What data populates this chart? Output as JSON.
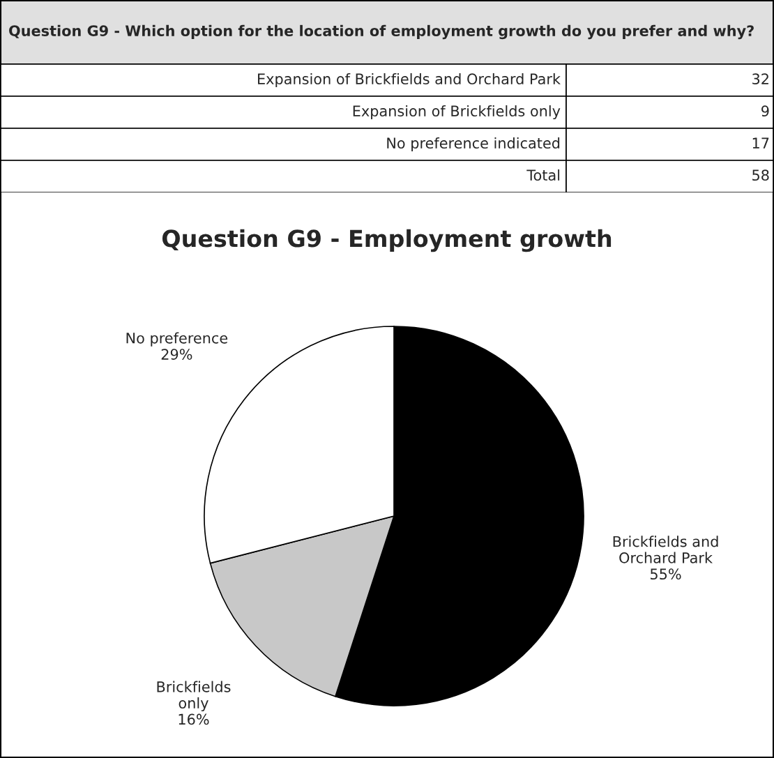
{
  "chart_data": [
    {
      "type": "other",
      "title": "Question G9 - Which option for the location of employment growth do you prefer and why?",
      "annotations": [
        "Expansion of Brickfields and Orchard Park",
        "32",
        "Expansion of Brickfields only",
        "9",
        "No preference indicated",
        "17",
        "Total",
        "58"
      ]
    },
    {
      "type": "pie",
      "title": "Question G9 - Employment growth",
      "categories": [
        "Brickfields and\nOrchard Park",
        "Brickfields\nonly",
        "No preference"
      ],
      "values": [
        55,
        16,
        29
      ],
      "value_labels": [
        "55%",
        "16%",
        "29%"
      ],
      "colors": [
        "#000000",
        "#c8c8c8",
        "#ffffff"
      ]
    }
  ]
}
